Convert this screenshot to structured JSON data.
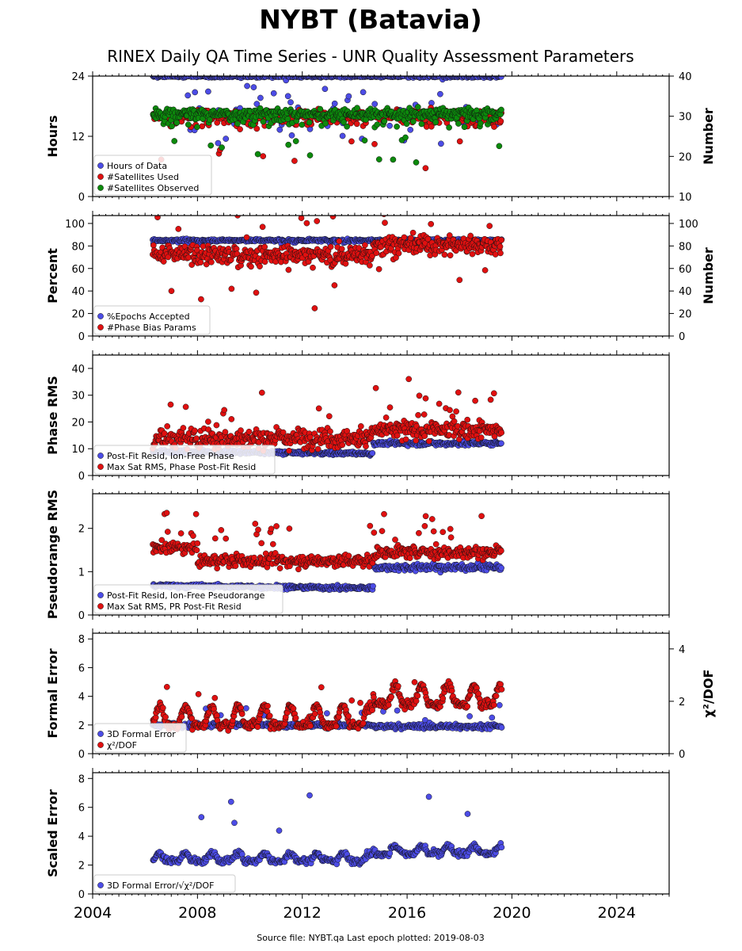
{
  "figure": {
    "title": "NYBT (Batavia)",
    "subtitle": "RINEX Daily QA Time Series - UNR Quality Assessment Parameters",
    "footer": "Source file: NYBT.qa Last epoch plotted: 2019-08-03",
    "colors": {
      "blue": "#4c4ce6",
      "red": "#e01010",
      "green": "#0c8a0c",
      "edge": "#111111"
    }
  },
  "chart_data": [
    {
      "type": "scatter",
      "xlim": [
        2004,
        2026
      ],
      "xticks": [
        "2004",
        "2008",
        "2012",
        "2016",
        "2020",
        "2024"
      ],
      "ylabel": "Hours",
      "ylim": [
        0,
        24
      ],
      "yticks": [
        "0",
        "12",
        "24"
      ],
      "y2label": "Number",
      "y2lim": [
        10,
        40
      ],
      "y2ticks": [
        "10",
        "20",
        "30",
        "40"
      ],
      "legend_position": "lower-left",
      "series": [
        {
          "name": "Hours of Data",
          "color": "blue",
          "axis": "left",
          "pattern": "hours",
          "base": 23.9,
          "low": 16.5
        },
        {
          "name": "#Satellites Used",
          "color": "red",
          "axis": "right",
          "pattern": "sats",
          "base": 30.2
        },
        {
          "name": "#Satellites Observed",
          "color": "green",
          "axis": "right",
          "pattern": "sats",
          "base": 30.6
        }
      ]
    },
    {
      "type": "scatter",
      "xlim": [
        2004,
        2026
      ],
      "xticks": [
        "2004",
        "2008",
        "2012",
        "2016",
        "2020",
        "2024"
      ],
      "ylabel": "Percent",
      "ylim": [
        0,
        107
      ],
      "yticks": [
        "0",
        "20",
        "40",
        "60",
        "80",
        "100"
      ],
      "y2label": "Number",
      "y2lim": [
        0,
        107
      ],
      "y2ticks": [
        "0",
        "20",
        "40",
        "60",
        "80",
        "100"
      ],
      "legend_position": "lower-left",
      "series": [
        {
          "name": "%Epochs Accepted",
          "color": "blue",
          "axis": "left",
          "pattern": "epochs",
          "base": 85
        },
        {
          "name": "#Phase Bias Params",
          "color": "red",
          "axis": "right",
          "pattern": "bias",
          "base": 72,
          "base2": 81
        }
      ]
    },
    {
      "type": "scatter",
      "xlim": [
        2004,
        2026
      ],
      "xticks": [
        "2004",
        "2008",
        "2012",
        "2016",
        "2020",
        "2024"
      ],
      "ylabel": "Phase RMS",
      "ylim": [
        0,
        45
      ],
      "yticks": [
        "0",
        "10",
        "20",
        "30",
        "40"
      ],
      "legend_position": "lower-left",
      "series": [
        {
          "name": "Post-Fit Resid, Ion-Free Phase",
          "color": "blue",
          "axis": "left",
          "pattern": "step",
          "base": 9.0,
          "base2": 12.0
        },
        {
          "name": "Max Sat RMS, Phase Post-Fit Resid",
          "color": "red",
          "axis": "left",
          "pattern": "maxrms",
          "base": 14.0,
          "base2": 17.0
        }
      ]
    },
    {
      "type": "scatter",
      "xlim": [
        2004,
        2026
      ],
      "xticks": [
        "2004",
        "2008",
        "2012",
        "2016",
        "2020",
        "2024"
      ],
      "ylabel": "Pseudorange RMS",
      "ylim": [
        0,
        2.8
      ],
      "yticks": [
        "0",
        "1",
        "2"
      ],
      "legend_position": "lower-left",
      "series": [
        {
          "name": "Post-Fit Resid, Ion-Free Pseudorange",
          "color": "blue",
          "axis": "left",
          "pattern": "step",
          "base": 0.68,
          "base2": 1.1
        },
        {
          "name": "Max Sat RMS, PR Post-Fit Resid",
          "color": "red",
          "axis": "left",
          "pattern": "prmax",
          "base": 1.25,
          "base2": 1.45
        }
      ]
    },
    {
      "type": "scatter",
      "xlim": [
        2004,
        2026
      ],
      "xticks": [
        "2004",
        "2008",
        "2012",
        "2016",
        "2020",
        "2024"
      ],
      "ylabel": "Formal Error",
      "ylim": [
        0,
        8.4
      ],
      "yticks": [
        "0",
        "2",
        "4",
        "6",
        "8"
      ],
      "y2label": "χ²/DOF",
      "y2lim": [
        0,
        4.6
      ],
      "y2ticks": [
        "0",
        "2",
        "4"
      ],
      "legend_position": "lower-left",
      "series": [
        {
          "name": "3D Formal Error",
          "color": "blue",
          "axis": "left",
          "pattern": "formal",
          "base": 2.0,
          "base2": 1.9
        },
        {
          "name": "χ²/DOF",
          "color": "red",
          "axis": "right",
          "pattern": "chi2",
          "base": 1.1,
          "base2": 1.9
        }
      ]
    },
    {
      "type": "scatter",
      "xlim": [
        2004,
        2026
      ],
      "xticks": [
        "2004",
        "2008",
        "2012",
        "2016",
        "2020",
        "2024"
      ],
      "ylabel": "Scaled Error",
      "ylim": [
        0,
        8.4
      ],
      "yticks": [
        "0",
        "2",
        "4",
        "6",
        "8"
      ],
      "legend_position": "lower-left",
      "series": [
        {
          "name": "3D Formal Error/√χ²/DOF",
          "color": "blue",
          "axis": "left",
          "pattern": "scaled",
          "base": 2.3,
          "base2": 2.8
        }
      ]
    }
  ],
  "data_window": {
    "start": 2006.3,
    "end": 2019.6,
    "station_change": 2014.7
  }
}
